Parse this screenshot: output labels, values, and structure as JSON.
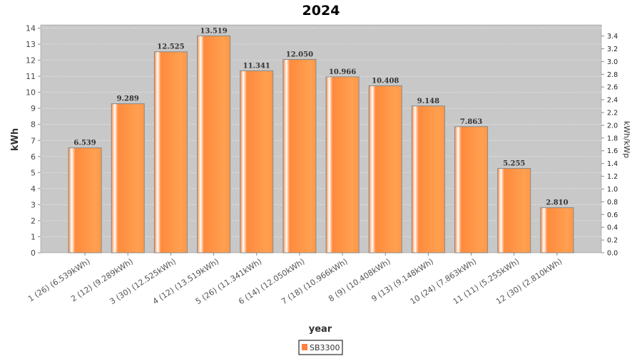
{
  "chart_data": {
    "type": "bar",
    "title": "2024",
    "xlabel": "year",
    "ylabel": "kWh",
    "y2label": "kWh/kWp",
    "ylim": [
      0,
      14.2
    ],
    "yticks": [
      0,
      1,
      2,
      3,
      4,
      5,
      6,
      7,
      8,
      9,
      10,
      11,
      12,
      13,
      14
    ],
    "y2ticks": [
      "0.0",
      "0.2",
      "0.4",
      "0.6",
      "0.8",
      "1.0",
      "1.2",
      "1.4",
      "1.6",
      "1.8",
      "2.0",
      "2.2",
      "2.4",
      "2.6",
      "2.8",
      "3.0",
      "3.2",
      "3.4"
    ],
    "y2_per_y": 0.2517,
    "categories": [
      "1 (26)  (6.539kWh)",
      "2 (12)  (9.289kWh)",
      "3 (30)  (12.525kWh)",
      "4 (12)  (13.519kWh)",
      "5 (26)  (11.341kWh)",
      "6 (14)  (12.050kWh)",
      "7 (18)  (10.966kWh)",
      "8 (9)  (10.408kWh)",
      "9 (13)  (9.148kWh)",
      "10 (24)  (7.863kWh)",
      "11 (11)  (5.255kWh)",
      "12 (30)  (2.810kWh)"
    ],
    "values": [
      6.539,
      9.289,
      12.525,
      13.519,
      11.341,
      12.05,
      10.966,
      10.408,
      9.148,
      7.863,
      5.255,
      2.81
    ],
    "value_labels": [
      "6.539",
      "9.289",
      "12.525",
      "13.519",
      "11.341",
      "12.050",
      "10.966",
      "10.408",
      "9.148",
      "7.863",
      "5.255",
      "2.810"
    ],
    "legend": [
      {
        "name": "SB3300",
        "color": "#ff8040"
      }
    ],
    "legend_position": "bottom",
    "grid": true,
    "colors": {
      "plot_bg": "#c8c8c8",
      "bar": "#ff8c3a"
    }
  }
}
